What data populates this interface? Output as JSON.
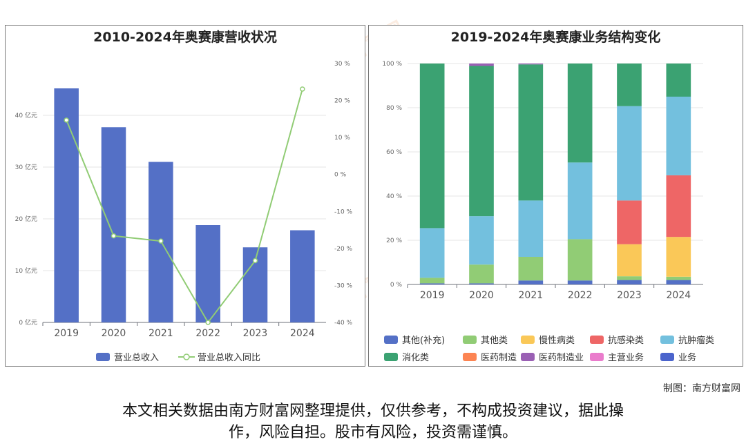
{
  "left_chart_title": "2010-2024年奥赛康营收状况",
  "right_chart_title": "2019-2024年奥赛康业务结构变化",
  "credit": "制图：南方财富网",
  "disclaimer_line1": "本文相关数据由南方财富网整理提供，仅供参考，不构成投资建议，据此操",
  "disclaimer_line2": "作，风险自担。股市有风险，投资需谨慎。",
  "watermark": "南方财富网",
  "chart_data": [
    {
      "type": "bar",
      "title": "2010-2024年奥赛康营收状况",
      "categories": [
        "2019",
        "2020",
        "2021",
        "2022",
        "2023",
        "2024"
      ],
      "series": [
        {
          "name": "营业总收入",
          "type": "bar",
          "axis": "left",
          "values": [
            45.2,
            37.7,
            31.0,
            18.8,
            14.5,
            17.8
          ],
          "color": "#5470c6"
        },
        {
          "name": "营业总收入同比",
          "type": "line",
          "axis": "right",
          "values": [
            14.7,
            -16.6,
            -18.0,
            -40.0,
            -23.3,
            23.1
          ],
          "color": "#91cc75"
        }
      ],
      "ylim_left": [
        0,
        50
      ],
      "yticks_left": [
        "0 亿元",
        "10 亿元",
        "20 亿元",
        "30 亿元",
        "40 亿元"
      ],
      "ylim_right": [
        -40,
        30
      ],
      "yticks_right": [
        "-40 %",
        "-30 %",
        "-20 %",
        "-10 %",
        "0 %",
        "10 %",
        "20 %",
        "30 %"
      ],
      "legend": [
        "营业总收入",
        "营业总收入同比"
      ],
      "legend_position": "bottom"
    },
    {
      "type": "bar",
      "stacked": true,
      "normalized": true,
      "title": "2019-2024年奥赛康业务结构变化",
      "categories": [
        "2019",
        "2020",
        "2021",
        "2022",
        "2023",
        "2024"
      ],
      "ylim": [
        0,
        100
      ],
      "yticks": [
        "0 %",
        "20 %",
        "40 %",
        "60 %",
        "80 %",
        "100 %"
      ],
      "series": [
        {
          "name": "其他(补充)",
          "values": [
            0.5,
            0.5,
            1.8,
            1.8,
            2.0,
            2.0
          ],
          "color": "#5470c6"
        },
        {
          "name": "其他类",
          "values": [
            2.5,
            8.5,
            10.7,
            18.7,
            1.7,
            1.5
          ],
          "color": "#91cc75"
        },
        {
          "name": "慢性病类",
          "values": [
            0,
            0,
            0,
            0,
            14.5,
            18.0
          ],
          "color": "#fac858"
        },
        {
          "name": "抗感染类",
          "values": [
            0,
            0,
            0,
            0,
            19.8,
            27.9
          ],
          "color": "#ee6666"
        },
        {
          "name": "抗肿瘤类",
          "values": [
            22.5,
            21.9,
            25.5,
            34.7,
            42.7,
            35.6
          ],
          "color": "#73c0de"
        },
        {
          "name": "消化类",
          "values": [
            74.5,
            68.0,
            61.6,
            44.8,
            19.3,
            15.0
          ],
          "color": "#3ba272"
        },
        {
          "name": "医药制造",
          "values": [
            0,
            0,
            0,
            0,
            0,
            0
          ],
          "color": "#fc8452"
        },
        {
          "name": "医药制造业",
          "values": [
            0,
            1.1,
            0.4,
            0,
            0,
            0
          ],
          "color": "#9a60b4"
        },
        {
          "name": "主营业务",
          "values": [
            0,
            0,
            0,
            0,
            0,
            0
          ],
          "color": "#ea7ccc"
        },
        {
          "name": "业务",
          "values": [
            0,
            0,
            0,
            0,
            0,
            0
          ],
          "color": "#4b64cc"
        }
      ],
      "legend_position": "bottom"
    }
  ]
}
